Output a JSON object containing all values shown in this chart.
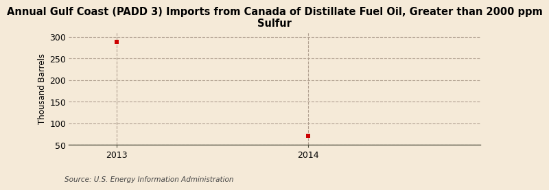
{
  "title": "Annual Gulf Coast (PADD 3) Imports from Canada of Distillate Fuel Oil, Greater than 2000 ppm\nSulfur",
  "ylabel": "Thousand Barrels",
  "source": "Source: U.S. Energy Information Administration",
  "background_color": "#f5ead8",
  "plot_bg_color": "#f5ead8",
  "x_data": [
    2013,
    2014
  ],
  "y_data": [
    289,
    72
  ],
  "point_color": "#cc0000",
  "xlim": [
    2012.75,
    2014.9
  ],
  "ylim": [
    50,
    310
  ],
  "yticks": [
    50,
    100,
    150,
    200,
    250,
    300
  ],
  "xticks": [
    2013,
    2014
  ],
  "grid_color": "#b0a090",
  "grid_linestyle": "--",
  "vline_x": [
    2014
  ],
  "vline_color": "#b0a090",
  "title_fontsize": 10.5,
  "label_fontsize": 8.5,
  "tick_fontsize": 9,
  "source_fontsize": 7.5,
  "marker_size": 4
}
